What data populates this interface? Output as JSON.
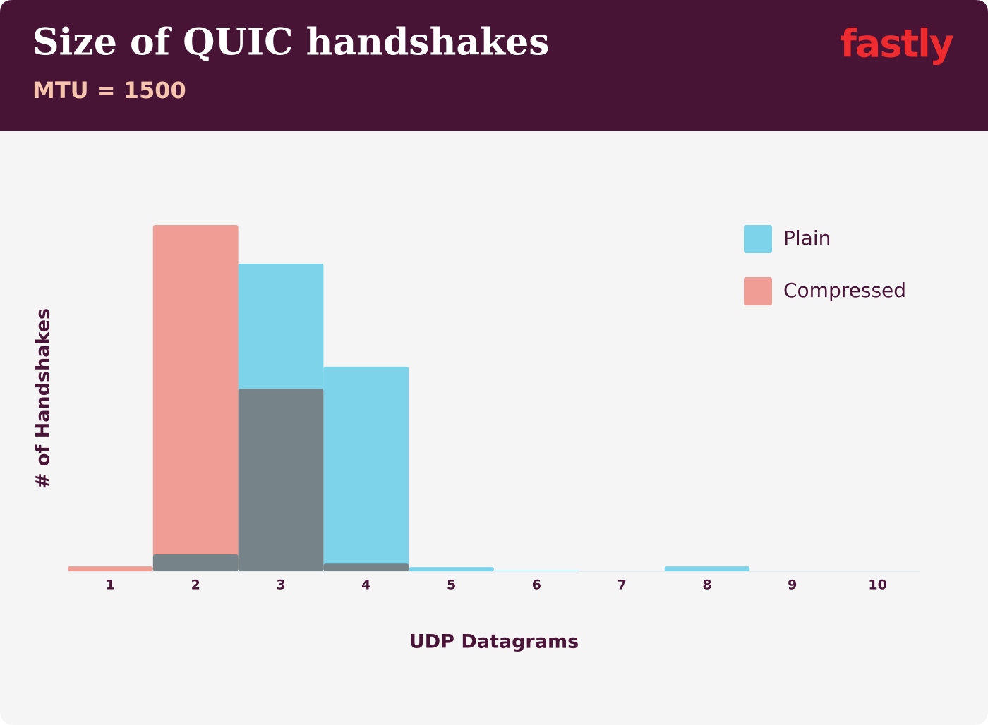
{
  "logo": "fastly",
  "chart_data": {
    "type": "bar",
    "title": "Size of QUIC handshakes",
    "subtitle": "MTU = 1500",
    "x_label": "UDP Datagrams",
    "y_label": "# of Handshakes",
    "categories": [
      1,
      2,
      3,
      4,
      5,
      6,
      7,
      8,
      9,
      10
    ],
    "series": [
      {
        "name": "Plain",
        "color": "#7dd4ea",
        "values": [
          0,
          4.9,
          88.8,
          59.1,
          1.2,
          0.2,
          0,
          1.4,
          0,
          0
        ]
      },
      {
        "name": "Compressed",
        "color": "#f09e95",
        "values": [
          1.4,
          100,
          52.7,
          2.2,
          0,
          0,
          0,
          0,
          0,
          0
        ]
      }
    ],
    "ylim": [
      0,
      100
    ],
    "legend": "top right"
  }
}
